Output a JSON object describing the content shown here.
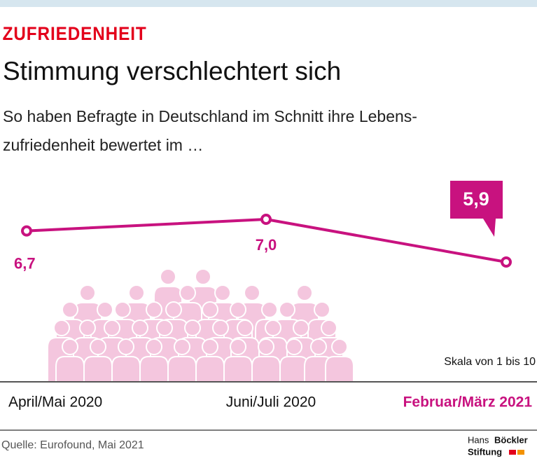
{
  "chart_data": {
    "type": "line",
    "kicker": "ZUFRIEDENHEIT",
    "title": "Stimmung verschlechtert sich",
    "subtitle": [
      "So haben Befragte in Deutschland im Schnitt ihre Lebens-",
      "zufriedenheit bewertet im …"
    ],
    "categories": [
      "April/Mai 2020",
      "Juni/Juli 2020",
      "Februar/März 2021"
    ],
    "values": [
      6.7,
      7.0,
      5.9
    ],
    "value_labels": [
      "6,7",
      "7,0",
      "5,9"
    ],
    "color": "#c8127f",
    "note": "Skala von 1 bis 10",
    "source": "Quelle: Eurofound, Mai 2021",
    "logo": [
      "Hans",
      "Böckler",
      "Stiftung"
    ]
  }
}
